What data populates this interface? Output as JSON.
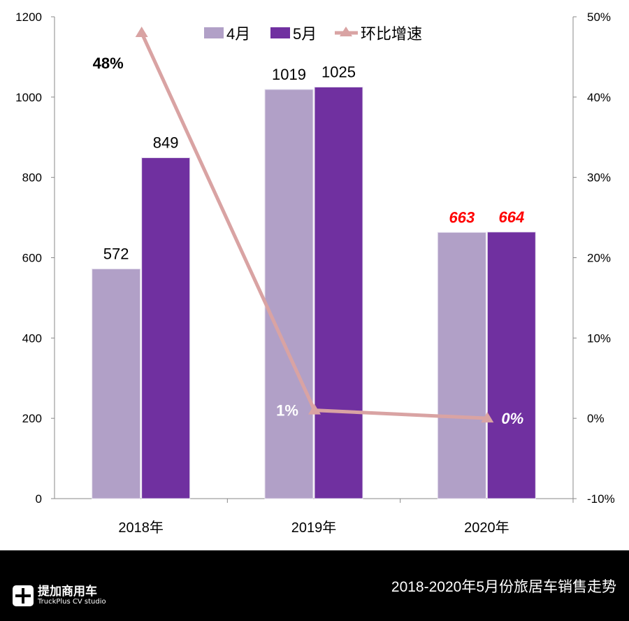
{
  "chart_data": {
    "type": "bar+line",
    "categories": [
      "2018年",
      "2019年",
      "2020年"
    ],
    "series": [
      {
        "name": "4月",
        "type": "bar",
        "axis": "left",
        "color": "#b1a0c7",
        "values": [
          572,
          1019,
          663
        ],
        "labels": [
          "572",
          "1019",
          "663"
        ]
      },
      {
        "name": "5月",
        "type": "bar",
        "axis": "left",
        "color": "#7030a0",
        "values": [
          849,
          1025,
          664
        ],
        "labels": [
          "849",
          "1025",
          "664"
        ]
      },
      {
        "name": "环比增速",
        "type": "line",
        "axis": "right",
        "color": "#d9a3a3",
        "values": [
          48,
          1,
          0
        ],
        "labels": [
          "48%",
          "1%",
          "0%"
        ]
      }
    ],
    "y_left": {
      "range": [
        0,
        1200
      ],
      "ticks": [
        "0",
        "200",
        "400",
        "600",
        "800",
        "1000",
        "1200"
      ]
    },
    "y_right": {
      "range": [
        -10,
        50
      ],
      "ticks": [
        "-10%",
        "0%",
        "10%",
        "20%",
        "30%",
        "40%",
        "50%"
      ]
    },
    "legend": {
      "placement": "top-center",
      "items": [
        "4月",
        "5月",
        "环比增速"
      ]
    },
    "grid": false,
    "highlight_color": "#ff0000"
  },
  "footer": {
    "logo_cn": "提加商用车",
    "logo_en": "TruckPlus CV studio",
    "title": "2018-2020年5月份旅居车销售走势"
  }
}
